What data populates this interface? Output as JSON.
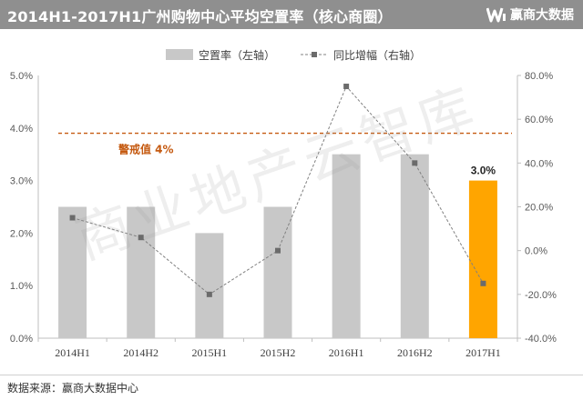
{
  "header": {
    "title": "2014H1-2017H1广州购物中心平均空置率（核心商圈）",
    "brand": "赢商大数据"
  },
  "watermark": "商业地产云智库",
  "source": "数据来源：赢商大数据中心",
  "colors": {
    "header_bg": "#8f8f8f",
    "bar": "#c8c8c8",
    "bar_highlight": "#ffa500",
    "line": "#808080",
    "warning": "#c55a11"
  },
  "chart_data": {
    "type": "bar",
    "title": "2014H1-2017H1广州购物中心平均空置率（核心商圈）",
    "categories": [
      "2014H1",
      "2014H2",
      "2015H1",
      "2015H2",
      "2016H1",
      "2016H2",
      "2017H1"
    ],
    "series": [
      {
        "name": "空置率（左轴）",
        "type": "bar",
        "axis": "left",
        "values": [
          2.5,
          2.5,
          2.0,
          2.5,
          3.5,
          3.5,
          3.0
        ]
      },
      {
        "name": "同比增幅（右轴）",
        "type": "line",
        "axis": "right",
        "values": [
          15,
          6,
          -20,
          0,
          75,
          40,
          -15
        ]
      }
    ],
    "highlight": {
      "index": 6,
      "label": "3.0%"
    },
    "reference_line": {
      "value": 3.9,
      "label": "警戒值 4%"
    },
    "left_axis": {
      "ylim": [
        0,
        5
      ],
      "ticks": [
        0,
        1,
        2,
        3,
        4,
        5
      ],
      "tick_labels": [
        "0.0%",
        "1.0%",
        "2.0%",
        "3.0%",
        "4.0%",
        "5.0%"
      ]
    },
    "right_axis": {
      "ylim": [
        -40,
        80
      ],
      "ticks": [
        -40,
        -20,
        0,
        20,
        40,
        60,
        80
      ],
      "tick_labels": [
        "-40.0%",
        "-20.0%",
        "0.0%",
        "20.0%",
        "40.0%",
        "60.0%",
        "80.0%"
      ]
    },
    "legend_position": "top",
    "grid": false
  }
}
